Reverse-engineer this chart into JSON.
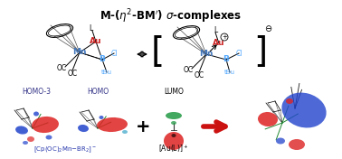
{
  "title": "M-($\\eta^2$-BM$^{\\prime}$) $\\sigma$-complexes",
  "background_color": "#ffffff",
  "title_fontsize": 8.5,
  "text_color": "#000000",
  "mn_color": "#4477bb",
  "au_color": "#cc2222",
  "b_color": "#55aaff",
  "cl_color": "#55aaff",
  "tbu_color": "#55aaff",
  "blue_orb": "#2244cc",
  "red_orb": "#dd2222",
  "green_orb": "#229944",
  "arrow_red": "#cc1111",
  "label_cp": "[Cp(OC)$_2$Mn$-$BR$_2$]$^-$",
  "label_au": "[Au(L)]$^+$",
  "homo3": "HOMO-3",
  "homo": "HOMO",
  "lumo": "LUMO"
}
